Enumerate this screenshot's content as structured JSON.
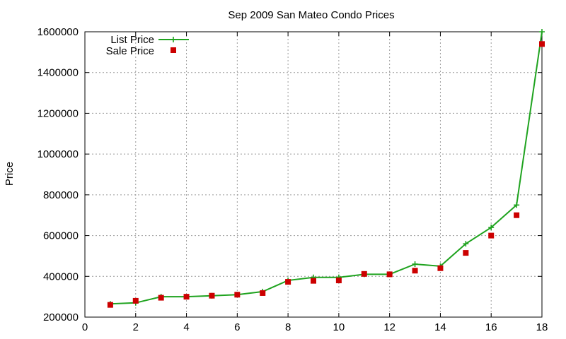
{
  "chart_data": {
    "type": "line",
    "title": "Sep 2009 San Mateo Condo Prices",
    "xlabel": "",
    "ylabel": "Price",
    "xlim": [
      0,
      18
    ],
    "ylim": [
      200000,
      1600000
    ],
    "xticks": [
      "0",
      "2",
      "4",
      "6",
      "8",
      "10",
      "12",
      "14",
      "16",
      "18"
    ],
    "yticks": [
      "200000",
      "400000",
      "600000",
      "800000",
      "1000000",
      "1200000",
      "1400000",
      "1600000"
    ],
    "grid": true,
    "legend_position": "top-left",
    "x": [
      1,
      2,
      3,
      4,
      5,
      6,
      7,
      8,
      9,
      10,
      11,
      12,
      13,
      14,
      15,
      16,
      17,
      18
    ],
    "series": [
      {
        "name": "List Price",
        "style": "line-with-plus-markers",
        "color": "#1fa31f",
        "values": [
          265000,
          270000,
          300000,
          300000,
          305000,
          310000,
          325000,
          380000,
          395000,
          395000,
          410000,
          410000,
          460000,
          450000,
          560000,
          640000,
          750000,
          1600000
        ]
      },
      {
        "name": "Sale Price",
        "style": "square-points",
        "color": "#cc0000",
        "values": [
          260000,
          280000,
          295000,
          300000,
          305000,
          310000,
          318000,
          373000,
          378000,
          380000,
          412000,
          410000,
          428000,
          440000,
          515000,
          600000,
          700000,
          1540000
        ]
      }
    ]
  }
}
